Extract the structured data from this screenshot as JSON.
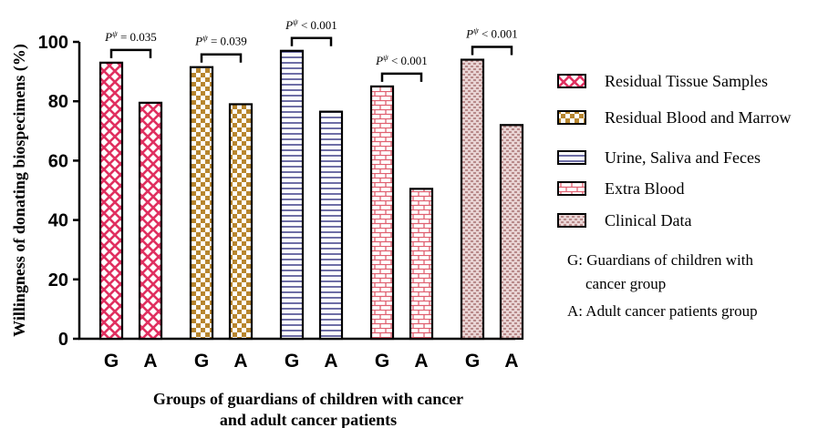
{
  "chart_data": {
    "type": "bar",
    "ylabel": "Willingness of donating biospecimens (%)",
    "xlabel_line1": "Groups of guardians of children with cancer",
    "xlabel_line2": "and adult cancer patients",
    "ylim": [
      0,
      100
    ],
    "yticks": [
      "0",
      "20",
      "40",
      "60",
      "80",
      "100"
    ],
    "group_labels": [
      "G",
      "A"
    ],
    "series": [
      {
        "name": "Residual Tissue Samples",
        "values": [
          93,
          79.5
        ],
        "color": "#e03060",
        "pattern": "crosshatch",
        "pvalue": "P^ψ = 0.035"
      },
      {
        "name": "Residual Blood and Marrow",
        "values": [
          91.5,
          79
        ],
        "color": "#b8862e",
        "pattern": "checker",
        "pvalue": "P^ψ = 0.039"
      },
      {
        "name": "Urine, Saliva and Feces",
        "values": [
          97,
          76.5
        ],
        "color": "#4a4a90",
        "pattern": "hlines",
        "pvalue": "P^ψ < 0.001"
      },
      {
        "name": "Extra Blood",
        "values": [
          85,
          50.5
        ],
        "color": "#e06070",
        "pattern": "brick",
        "pvalue": "P^ψ < 0.001"
      },
      {
        "name": "Clinical Data",
        "values": [
          94,
          72
        ],
        "color": "#c09090",
        "pattern": "dots",
        "pvalue": "P^ψ < 0.001"
      }
    ],
    "pvalues": [
      {
        "prefix": "P",
        "sup": "ψ",
        "text": " = 0.035"
      },
      {
        "prefix": "P",
        "sup": "ψ",
        "text": " = 0.039"
      },
      {
        "prefix": "P",
        "sup": "ψ",
        "text": " < 0.001"
      },
      {
        "prefix": "P",
        "sup": "ψ",
        "text": " < 0.001"
      },
      {
        "prefix": "P",
        "sup": "ψ",
        "text": " < 0.001"
      }
    ],
    "notes": [
      [
        "G: Guardians of children with",
        "cancer group"
      ],
      [
        "A: Adult  cancer patients group"
      ]
    ],
    "legend_position": "right"
  }
}
